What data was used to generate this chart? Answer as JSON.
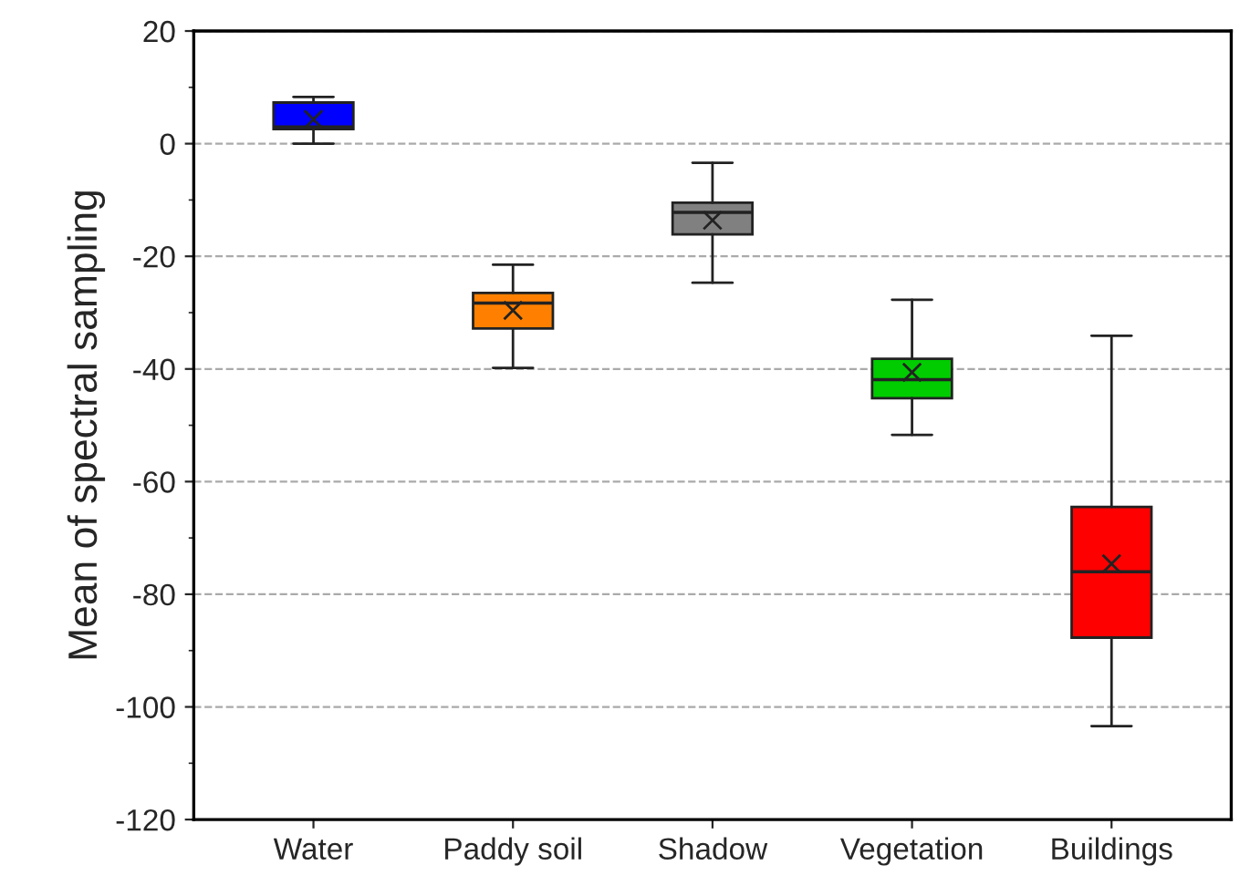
{
  "chart_data": {
    "type": "box",
    "ylabel": "Mean of spectral sampling",
    "categories": [
      "Water",
      "Paddy soil",
      "Shadow",
      "Vegetation",
      "Buildings"
    ],
    "colors": [
      "#0000ff",
      "#ff8000",
      "#808080",
      "#00cc00",
      "#ff0000"
    ],
    "boxes": [
      {
        "low": 0,
        "q1": 2.6,
        "median": 3,
        "q3": 7.3,
        "high": 8.3,
        "mean": 4.3
      },
      {
        "low": -39.8,
        "q1": -32.8,
        "median": -28.3,
        "q3": -26.5,
        "high": -21.5,
        "mean": -29.6
      },
      {
        "low": -24.7,
        "q1": -16.1,
        "median": -12.2,
        "q3": -10.5,
        "high": -3.4,
        "mean": -13.6
      },
      {
        "low": -51.7,
        "q1": -45.2,
        "median": -41.9,
        "q3": -38.2,
        "high": -27.7,
        "mean": -40.6
      },
      {
        "low": -103.4,
        "q1": -87.7,
        "median": -76,
        "q3": -64.5,
        "high": -34.1,
        "mean": -74.6
      }
    ],
    "ylim": [
      -120,
      20
    ],
    "yticks": [
      -120,
      -100,
      -80,
      -60,
      -40,
      -20,
      0,
      20
    ],
    "grid": "y"
  }
}
